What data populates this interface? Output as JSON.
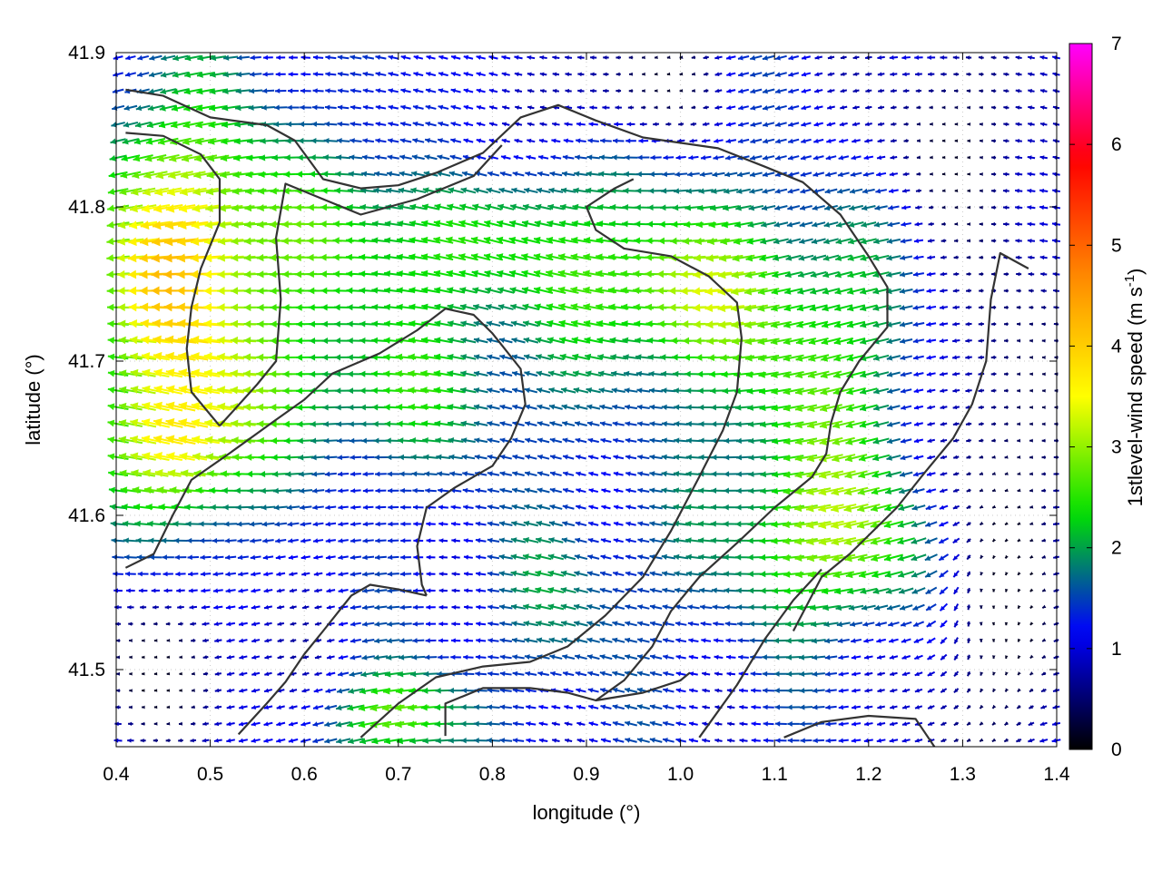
{
  "chart_data": {
    "type": "vector_field",
    "xlabel": "longitude (°)",
    "ylabel": "latitude (°)",
    "xlim": [
      0.4,
      1.4
    ],
    "ylim": [
      41.45,
      41.9
    ],
    "xticks": [
      "0.4",
      "0.5",
      "0.6",
      "0.7",
      "0.8",
      "0.9",
      "1.0",
      "1.1",
      "1.2",
      "1.3",
      "1.4"
    ],
    "yticks": [
      "41.5",
      "41.6",
      "41.7",
      "41.8",
      "41.9"
    ],
    "grid": "dotted",
    "colorbar": {
      "label": "1stlevel-wind speed (m s-1)",
      "label_main": "1stlevel-wind speed (m s",
      "label_sup": "-1",
      "label_end": ")",
      "range": [
        0,
        7
      ],
      "ticks": [
        "0",
        "1",
        "2",
        "3",
        "4",
        "5",
        "6",
        "7"
      ],
      "colormap": [
        "#000000",
        "#0000ff",
        "#00e000",
        "#ffff00",
        "#ff8c00",
        "#ff0000",
        "#ff00ff"
      ]
    },
    "vectors": {
      "lon_spacing": 0.0133,
      "lat_spacing": 0.0108,
      "prevailing_direction": "from east (arrows point west)"
    },
    "coastline_color": "#333333"
  }
}
